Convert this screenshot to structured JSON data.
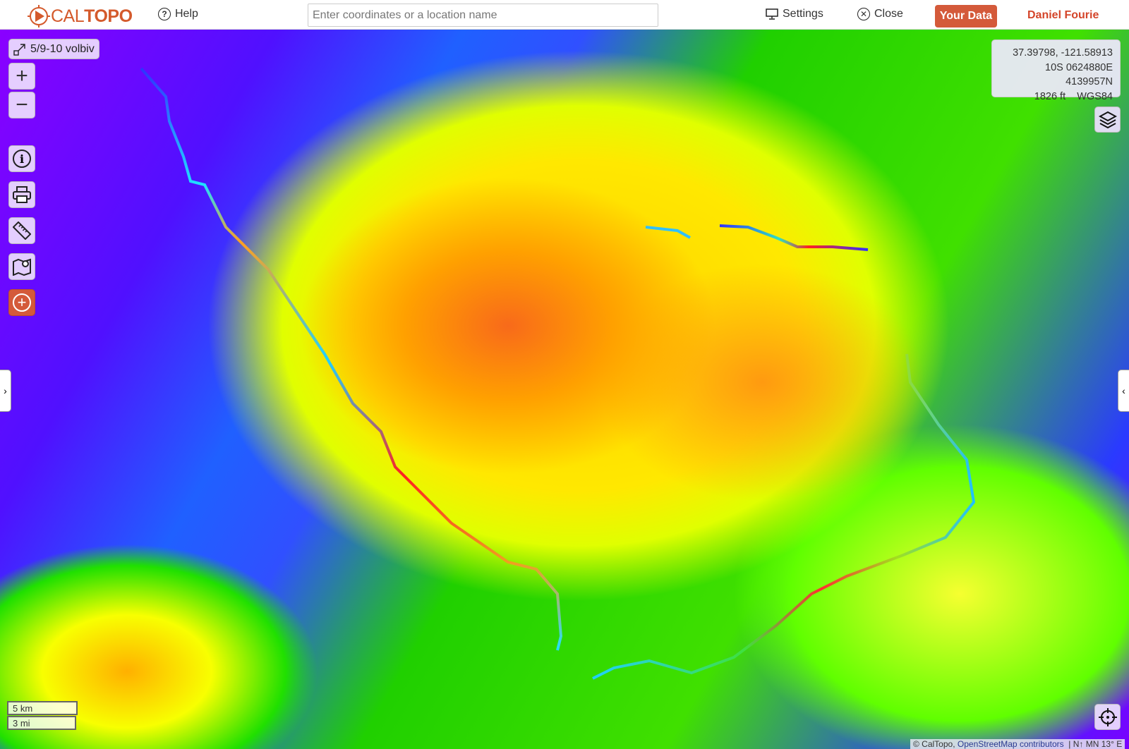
{
  "header": {
    "logo_cal": "CAL",
    "logo_topo": "TOPO",
    "help": "Help",
    "search_placeholder": "Enter coordinates or a location name",
    "settings": "Settings",
    "close": "Close",
    "your_data": "Your Data",
    "user": "Daniel Fourie"
  },
  "map": {
    "layer_label": "5/9-10 volbiv",
    "coords": {
      "latlon": "37.39798, -121.58913",
      "utm": "10S 0624880E 4139957N",
      "elevation": "1826 ft",
      "datum": "WGS84"
    },
    "scale_km": "5 km",
    "scale_mi": "3 mi",
    "attribution_caltopo": "© CalTopo,",
    "attribution_osm": "OpenStreetMap contributors",
    "declination": "N↑ MN 13° E"
  },
  "colors": {
    "brand": "#d45a2c",
    "your_data_bg": "#d45a3a"
  }
}
